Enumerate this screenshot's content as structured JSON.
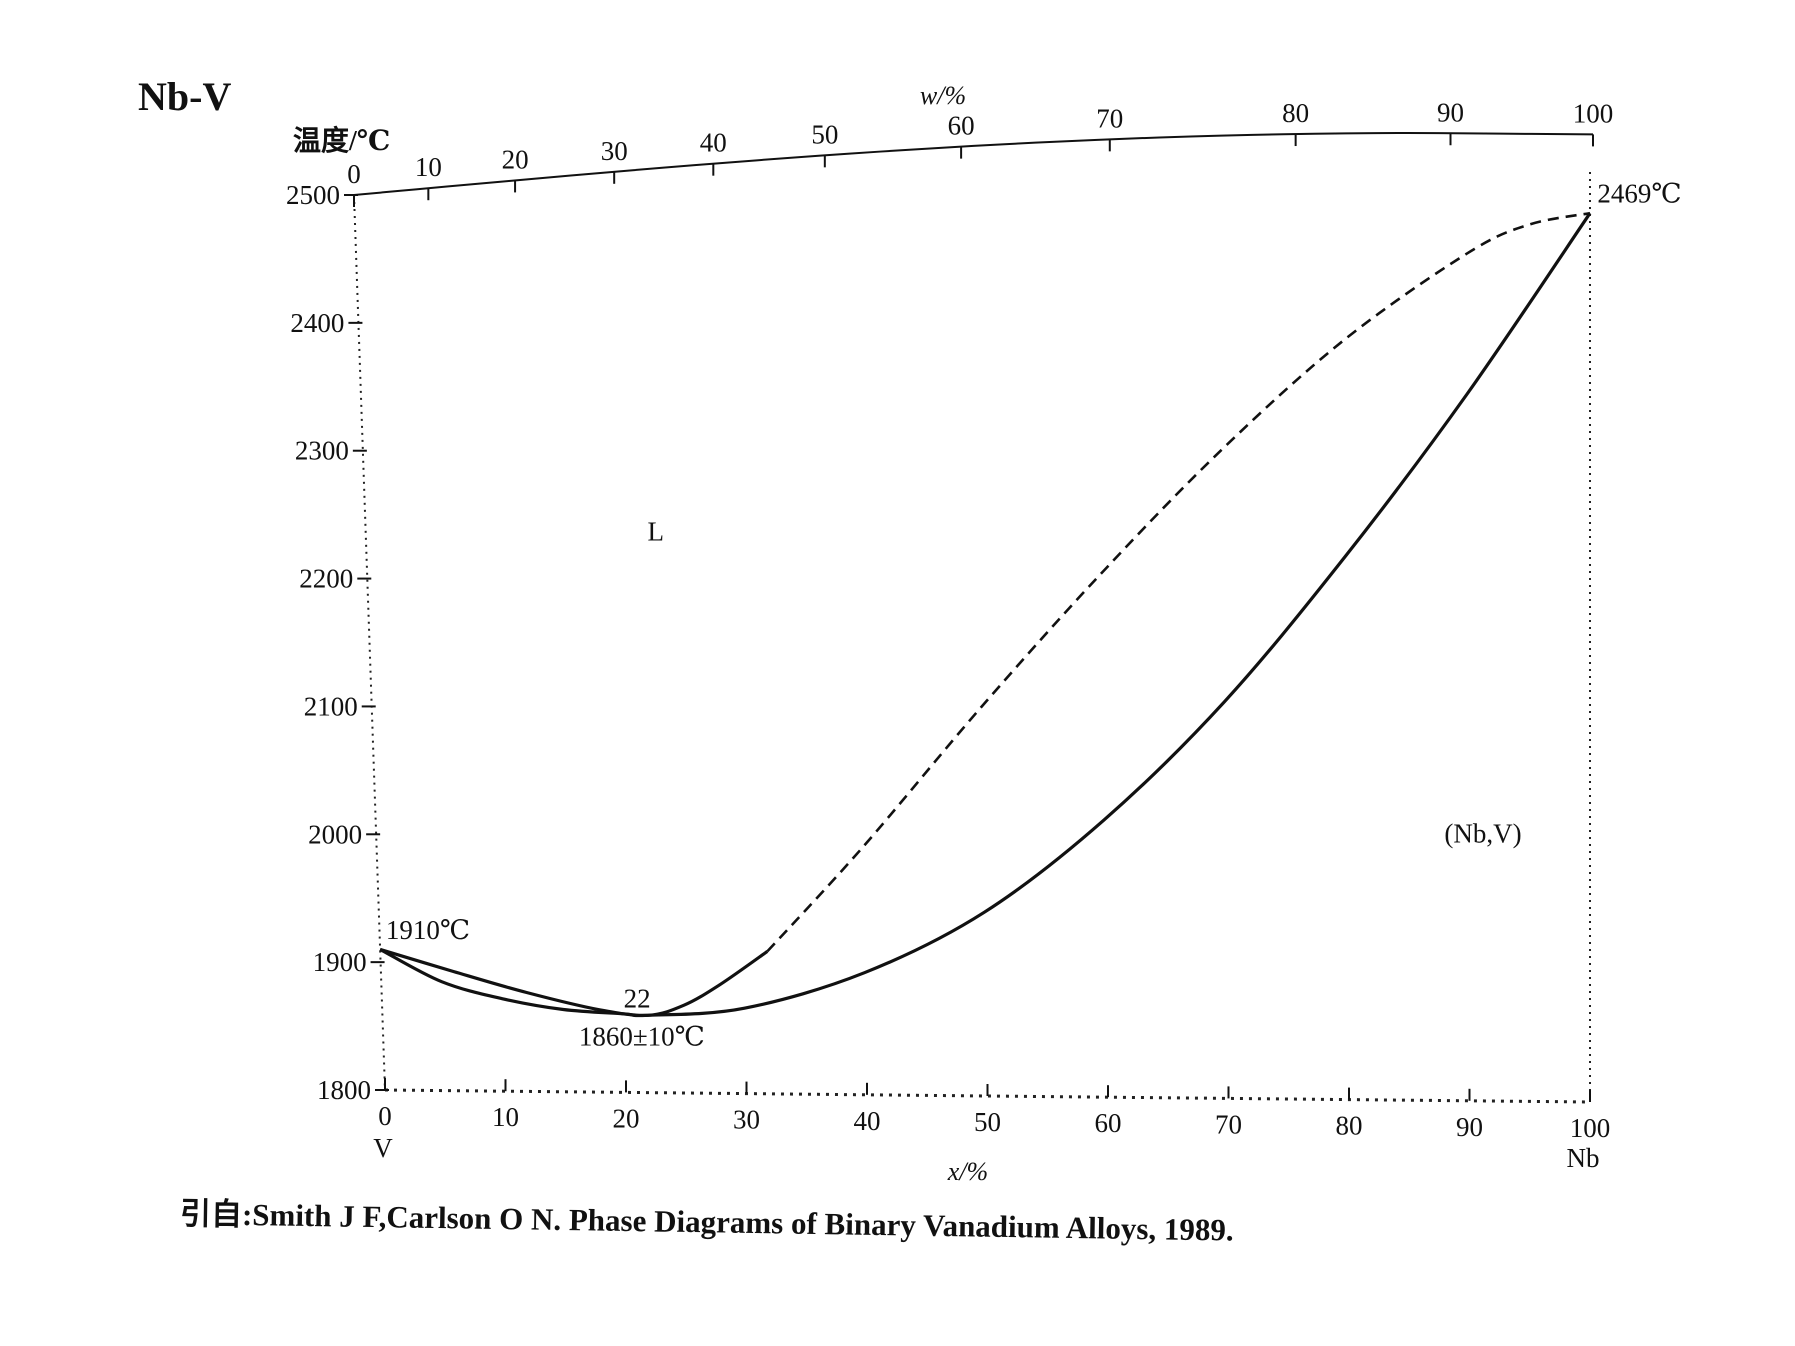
{
  "figure": {
    "title": "Nb-V",
    "caption": "引自:Smith J F,Carlson O N. Phase Diagrams of Binary Vanadium Alloys, 1989."
  },
  "chart_data": {
    "type": "line",
    "title": "Nb-V",
    "ylabel": "温度/℃",
    "xlabel_bottom": "x/%",
    "xlabel_top": "w/%",
    "xlim": [
      0,
      100
    ],
    "ylim": [
      1800,
      2500
    ],
    "x_ticks": [
      0,
      10,
      20,
      30,
      40,
      50,
      60,
      70,
      80,
      90,
      100
    ],
    "x_tick_labels": [
      "0",
      "10",
      "20",
      "30",
      "40",
      "50",
      "60",
      "70",
      "80",
      "90",
      "100"
    ],
    "y_ticks": [
      1800,
      1900,
      2000,
      2100,
      2200,
      2300,
      2400,
      2500
    ],
    "y_tick_labels": [
      "1800",
      "1900",
      "2000",
      "2100",
      "2200",
      "2300",
      "2400",
      "2500"
    ],
    "top_ticks": [
      0,
      10,
      20,
      30,
      40,
      50,
      60,
      70,
      80,
      90,
      100
    ],
    "top_tick_labels": [
      "0",
      "10",
      "20",
      "30",
      "40",
      "50",
      "60",
      "70",
      "80",
      "90",
      "100"
    ],
    "endpoint_labels": {
      "left": "V",
      "right": "Nb"
    },
    "series": [
      {
        "style": "solid",
        "x": [
          0,
          6,
          12,
          18,
          22,
          25,
          28,
          32
        ],
        "y": [
          1910,
          1893,
          1877,
          1864,
          1860,
          1868,
          1884,
          1910
        ]
      },
      {
        "style": "dashed",
        "x": [
          32,
          40,
          50,
          60,
          70,
          80,
          90,
          95,
          100
        ],
        "y": [
          1910,
          1990,
          2098,
          2200,
          2294,
          2376,
          2440,
          2461,
          2469
        ]
      },
      {
        "style": "solid",
        "x": [
          0,
          5,
          10,
          15,
          20,
          22,
          30,
          40,
          50,
          60,
          70,
          80,
          90,
          100
        ],
        "y": [
          1910,
          1885,
          1872,
          1864,
          1861,
          1860,
          1866,
          1894,
          1941,
          2012,
          2102,
          2212,
          2334,
          2469
        ]
      }
    ],
    "annotations": [
      {
        "text": "L",
        "x": 23,
        "y": 2228
      },
      {
        "text": "(Nb,V)",
        "x": 88,
        "y": 1995
      },
      {
        "text": "1910℃",
        "x": 0.5,
        "y": 1918
      },
      {
        "text": "22",
        "x": 20,
        "y": 1866
      },
      {
        "text": "1860±10℃",
        "x": 16.2,
        "y": 1836
      },
      {
        "text": "2469℃",
        "x": 100.6,
        "y": 2477
      }
    ]
  }
}
